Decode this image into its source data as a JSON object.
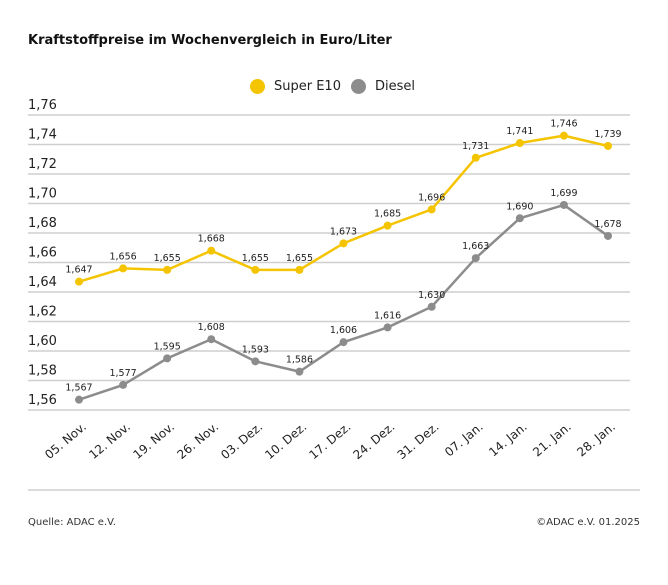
{
  "title": "Kraftstoffpreise im Wochenvergleich in Euro/Liter",
  "source": "Quelle: ADAC e.V.",
  "copyright": "©ADAC e.V. 01.2025",
  "chart_data": {
    "type": "line",
    "title": "Kraftstoffpreise im Wochenvergleich in Euro/Liter",
    "categories": [
      "05. Nov.",
      "12. Nov.",
      "19. Nov.",
      "26. Nov.",
      "03. Dez.",
      "10. Dez.",
      "17. Dez.",
      "24. Dez.",
      "31. Dez.",
      "07. Jan.",
      "14. Jan.",
      "21. Jan.",
      "28. Jan."
    ],
    "series": [
      {
        "name": "Super E10",
        "color": "#f5c400",
        "values": [
          1.647,
          1.656,
          1.655,
          1.668,
          1.655,
          1.655,
          1.673,
          1.685,
          1.696,
          1.731,
          1.741,
          1.746,
          1.739
        ],
        "labels": [
          "1,647",
          "1,656",
          "1,655",
          "1,668",
          "1,655",
          "1,655",
          "1,673",
          "1,685",
          "1,696",
          "1,731",
          "1,741",
          "1,746",
          "1,739"
        ]
      },
      {
        "name": "Diesel",
        "color": "#8c8c8c",
        "values": [
          1.567,
          1.577,
          1.595,
          1.608,
          1.593,
          1.586,
          1.606,
          1.616,
          1.63,
          1.663,
          1.69,
          1.699,
          1.678
        ],
        "labels": [
          "1,567",
          "1,577",
          "1,595",
          "1,608",
          "1,593",
          "1,586",
          "1,606",
          "1,616",
          "1,630",
          "1,663",
          "1,690",
          "1,699",
          "1,678"
        ]
      }
    ],
    "ylim": [
      1.56,
      1.76
    ],
    "yticks": [
      "1,56",
      "1,58",
      "1,60",
      "1,62",
      "1,64",
      "1,66",
      "1,68",
      "1,70",
      "1,72",
      "1,74",
      "1,76"
    ],
    "grid": true,
    "legend": "top-center"
  }
}
